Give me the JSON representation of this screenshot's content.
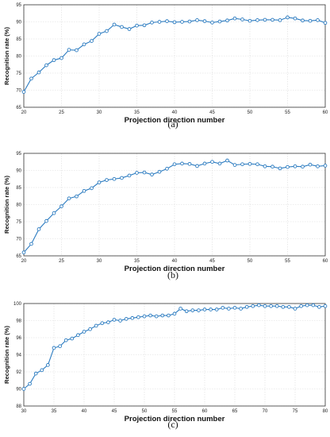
{
  "chart_data": [
    {
      "type": "line",
      "xlabel": "Projection direction number",
      "ylabel": "Recognition rate (%)",
      "xlim": [
        20,
        60
      ],
      "ylim": [
        65,
        95
      ],
      "xticks": [
        20,
        25,
        30,
        35,
        40,
        45,
        50,
        55,
        60
      ],
      "yticks": [
        65,
        70,
        75,
        80,
        85,
        90,
        95
      ],
      "grid": true,
      "caption": "(a)",
      "color": "#2b7bc0",
      "x": [
        20,
        21,
        22,
        23,
        24,
        25,
        26,
        27,
        28,
        29,
        30,
        31,
        32,
        33,
        34,
        35,
        36,
        37,
        38,
        39,
        40,
        41,
        42,
        43,
        44,
        45,
        46,
        47,
        48,
        49,
        50,
        51,
        52,
        53,
        54,
        55,
        56,
        57,
        58,
        59,
        60
      ],
      "y": [
        69.5,
        73.4,
        75.2,
        77.3,
        78.8,
        79.4,
        81.8,
        81.7,
        83.4,
        84.4,
        86.5,
        87.3,
        89.2,
        88.5,
        87.9,
        88.9,
        89.0,
        89.8,
        90.0,
        90.2,
        89.9,
        90.0,
        90.1,
        90.5,
        90.2,
        89.8,
        90.1,
        90.4,
        91.0,
        90.7,
        90.3,
        90.5,
        90.6,
        90.6,
        90.5,
        91.3,
        91.0,
        90.4,
        90.3,
        90.5,
        89.7
      ]
    },
    {
      "type": "line",
      "xlabel": "Projection direction number",
      "ylabel": "Recognition rate (%)",
      "xlim": [
        20,
        60
      ],
      "ylim": [
        65,
        95
      ],
      "xticks": [
        20,
        25,
        30,
        35,
        40,
        45,
        50,
        55,
        60
      ],
      "yticks": [
        65,
        70,
        75,
        80,
        85,
        90,
        95
      ],
      "grid": true,
      "caption": "(b)",
      "color": "#2b7bc0",
      "x": [
        20,
        21,
        22,
        23,
        24,
        25,
        26,
        27,
        28,
        29,
        30,
        31,
        32,
        33,
        34,
        35,
        36,
        37,
        38,
        39,
        40,
        41,
        42,
        43,
        44,
        45,
        46,
        47,
        48,
        49,
        50,
        51,
        52,
        53,
        54,
        55,
        56,
        57,
        58,
        59,
        60
      ],
      "y": [
        66.0,
        68.5,
        72.8,
        75.2,
        77.5,
        79.5,
        81.8,
        82.4,
        84.0,
        84.8,
        86.5,
        87.2,
        87.5,
        87.8,
        88.5,
        89.3,
        89.4,
        88.8,
        89.6,
        90.5,
        91.8,
        92.0,
        91.9,
        91.3,
        92.0,
        92.5,
        92.0,
        92.9,
        91.6,
        91.8,
        91.9,
        91.8,
        91.2,
        91.1,
        90.6,
        91.0,
        91.2,
        91.1,
        91.7,
        91.2,
        91.4
      ]
    },
    {
      "type": "line",
      "xlabel": "Projection direction number",
      "ylabel": "Recognition rate (%)",
      "xlim": [
        30,
        80
      ],
      "ylim": [
        88,
        100
      ],
      "xticks": [
        30,
        35,
        40,
        45,
        50,
        55,
        60,
        65,
        70,
        75,
        80
      ],
      "yticks": [
        88,
        90,
        92,
        94,
        96,
        98,
        100
      ],
      "grid": true,
      "caption": "(c)",
      "color": "#2b7bc0",
      "x": [
        30,
        31,
        32,
        33,
        34,
        35,
        36,
        37,
        38,
        39,
        40,
        41,
        42,
        43,
        44,
        45,
        46,
        47,
        48,
        49,
        50,
        51,
        52,
        53,
        54,
        55,
        56,
        57,
        58,
        59,
        60,
        61,
        62,
        63,
        64,
        65,
        66,
        67,
        68,
        69,
        70,
        71,
        72,
        73,
        74,
        75,
        76,
        77,
        78,
        79,
        80
      ],
      "y": [
        90.0,
        90.6,
        91.8,
        92.2,
        92.8,
        94.8,
        95.0,
        95.7,
        95.9,
        96.3,
        96.7,
        97.0,
        97.4,
        97.7,
        97.8,
        98.1,
        98.0,
        98.2,
        98.3,
        98.4,
        98.5,
        98.6,
        98.5,
        98.6,
        98.6,
        98.8,
        99.4,
        99.1,
        99.2,
        99.2,
        99.3,
        99.3,
        99.3,
        99.5,
        99.4,
        99.5,
        99.4,
        99.6,
        99.7,
        99.8,
        99.7,
        99.7,
        99.7,
        99.6,
        99.6,
        99.4,
        99.7,
        99.8,
        99.8,
        99.6,
        99.7
      ]
    }
  ]
}
